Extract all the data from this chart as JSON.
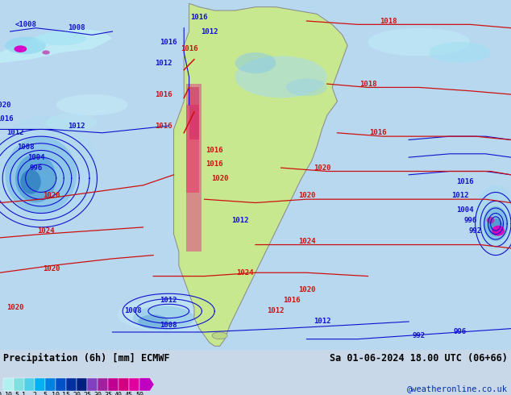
{
  "title_left": "Precipitation (6h) [mm] ECMWF",
  "title_right": "Sa 01-06-2024 18.00 UTC (06+66)",
  "credit": "@weatheronline.co.uk",
  "colorbar_levels": [
    "0.1",
    "0.5",
    "1",
    "2",
    "5",
    "10",
    "15",
    "20",
    "25",
    "30",
    "35",
    "40",
    "45",
    "50"
  ],
  "colorbar_colors": [
    "#b0f0f0",
    "#80e0e0",
    "#50d0e8",
    "#00b0f0",
    "#0080e0",
    "#0050c8",
    "#0030a0",
    "#002080",
    "#8040c0",
    "#a020a0",
    "#c00090",
    "#d00080",
    "#e000a0",
    "#c000c0"
  ],
  "ocean_bg": "#b8d8f0",
  "land_color": "#c8e8a0",
  "precip_light": "#c0eef8",
  "precip_mid": "#80c8e8",
  "precip_dark": "#4090c8",
  "precip_magenta": "#e000c0",
  "blue_color": "#1010cc",
  "red_color": "#cc1010",
  "border_color": "#808080",
  "fig_bg": "#c8d8e8",
  "info_bg": "#c8d8e8",
  "fig_width": 6.34,
  "fig_height": 4.9,
  "dpi": 100
}
